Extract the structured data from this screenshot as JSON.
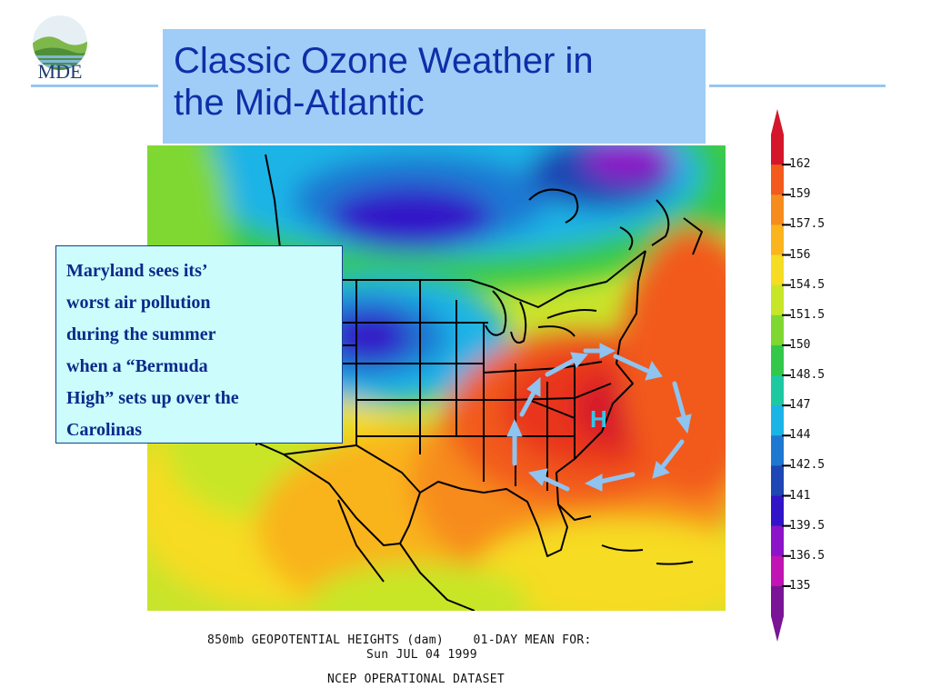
{
  "logo": {
    "text": "MDE"
  },
  "title": {
    "line1": "Classic Ozone Weather in",
    "line2": "the Mid-Atlantic"
  },
  "callout": {
    "lines": [
      "Maryland sees its’",
      "worst air pollution",
      "during the summer",
      "when a “Bermuda",
      "High” sets up over the",
      "Carolinas"
    ]
  },
  "map": {
    "high_label": "H"
  },
  "colorbar": {
    "labels": [
      "162",
      "159",
      "157.5",
      "156",
      "154.5",
      "151.5",
      "150",
      "148.5",
      "147",
      "144",
      "142.5",
      "141",
      "139.5",
      "136.5",
      "135"
    ],
    "colors": [
      "#d5162a",
      "#f25a1e",
      "#f78c1e",
      "#f9b41e",
      "#f6dc22",
      "#c8e628",
      "#7fd832",
      "#34c84a",
      "#1ec8a0",
      "#1ab4e6",
      "#1e78d2",
      "#1e46b4",
      "#3214c8",
      "#8c14c8",
      "#c014b4",
      "#7a1496"
    ]
  },
  "caption": {
    "line1": "850mb GEOPOTENTIAL HEIGHTS (dam)    01-DAY MEAN FOR:",
    "line2": "Sun JUL 04 1999",
    "line3": "NCEP OPERATIONAL DATASET"
  },
  "colors": {
    "title_bg": "#9fcdf7",
    "title_text": "#0d2fa8",
    "callout_bg": "#ccfcfc",
    "arrow": "#8fc3f0"
  }
}
